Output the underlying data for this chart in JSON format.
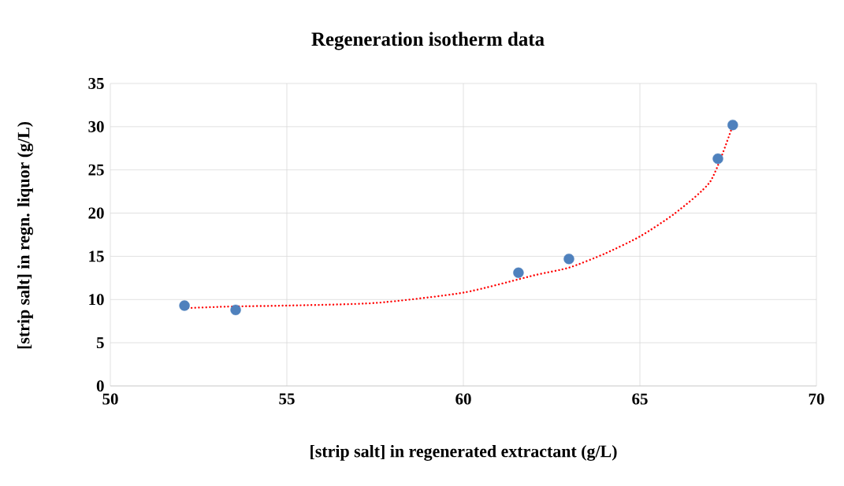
{
  "chart_data": {
    "type": "scatter",
    "title": "Regeneration isotherm data",
    "xlabel": "[strip salt] in regenerated extractant (g/L)",
    "ylabel": "[strip salt] in regn. liquor (g/L)",
    "xlim": [
      50,
      70
    ],
    "ylim": [
      0,
      35
    ],
    "xticks": [
      50,
      55,
      60,
      65,
      70
    ],
    "yticks": [
      0,
      5,
      10,
      15,
      20,
      25,
      30,
      35
    ],
    "grid": true,
    "series": [
      {
        "color": "#4f81bd",
        "marker": "circle",
        "x": [
          52.1,
          53.55,
          61.56,
          62.99,
          67.21,
          67.63
        ],
        "values": [
          9.3,
          8.8,
          13.1,
          14.7,
          26.3,
          30.2
        ]
      },
      {
        "type": "line",
        "color": "#ff0000",
        "marker": "none",
        "line_style": "dotted",
        "x": [
          52.1,
          53.5,
          55,
          57.5,
          60,
          62,
          63,
          64,
          65,
          66,
          67,
          67.6
        ],
        "values": [
          9.0,
          9.2,
          9.3,
          9.6,
          10.8,
          12.8,
          13.7,
          15.3,
          17.3,
          20.0,
          23.7,
          29.8
        ]
      }
    ]
  }
}
